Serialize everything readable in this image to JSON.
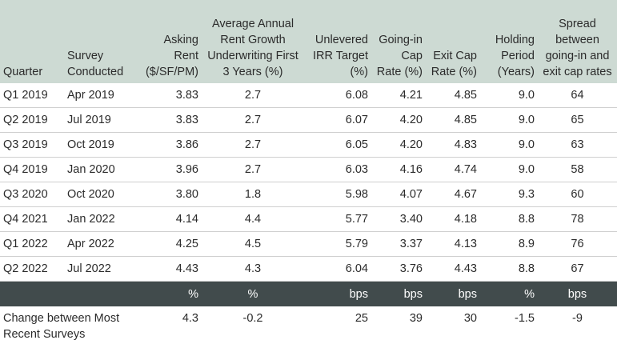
{
  "headers": [
    {
      "text": "Quarter",
      "align": "left"
    },
    {
      "text": "Survey Conducted",
      "align": "left"
    },
    {
      "text": "Asking Rent ($/SF/PM)",
      "align": "right"
    },
    {
      "text": "Average Annual Rent Growth Underwriting First 3 Years (%)",
      "align": "center"
    },
    {
      "text": "Unlevered IRR Target (%)",
      "align": "right"
    },
    {
      "text": "Going-in Cap Rate (%)",
      "align": "right"
    },
    {
      "text": "Exit Cap Rate (%)",
      "align": "right"
    },
    {
      "text": "Holding Period (Years)",
      "align": "right"
    },
    {
      "text": "Spread between going-in and exit cap rates",
      "align": "center"
    }
  ],
  "rows": [
    [
      "Q1 2019",
      "Apr 2019",
      "3.83",
      "2.7",
      "6.08",
      "4.21",
      "4.85",
      "9.0",
      "64"
    ],
    [
      "Q2 2019",
      "Jul 2019",
      "3.83",
      "2.7",
      "6.07",
      "4.20",
      "4.85",
      "9.0",
      "65"
    ],
    [
      "Q3 2019",
      "Oct 2019",
      "3.86",
      "2.7",
      "6.05",
      "4.20",
      "4.83",
      "9.0",
      "63"
    ],
    [
      "Q4 2019",
      "Jan 2020",
      "3.96",
      "2.7",
      "6.03",
      "4.16",
      "4.74",
      "9.0",
      "58"
    ],
    [
      "Q3 2020",
      "Oct 2020",
      "3.80",
      "1.8",
      "5.98",
      "4.07",
      "4.67",
      "9.3",
      "60"
    ],
    [
      "Q4 2021",
      "Jan 2022",
      "4.14",
      "4.4",
      "5.77",
      "3.40",
      "4.18",
      "8.8",
      "78"
    ],
    [
      "Q1 2022",
      "Apr 2022",
      "4.25",
      "4.5",
      "5.79",
      "3.37",
      "4.13",
      "8.9",
      "76"
    ],
    [
      "Q2 2022",
      "Jul 2022",
      "4.43",
      "4.3",
      "6.04",
      "3.76",
      "4.43",
      "8.8",
      "67"
    ]
  ],
  "units": [
    "",
    "",
    "%",
    "%",
    "bps",
    "bps",
    "bps",
    "%",
    "bps"
  ],
  "change": {
    "label": "Change between Most Recent Surveys",
    "values": [
      "4.3",
      "-0.2",
      "25",
      "39",
      "30",
      "-1.5",
      "-9"
    ]
  },
  "colors": {
    "header_bg": "#cddad3",
    "units_bg": "#414b4c",
    "text": "#2b2b2b",
    "row_divider": "#cfcfcf"
  }
}
